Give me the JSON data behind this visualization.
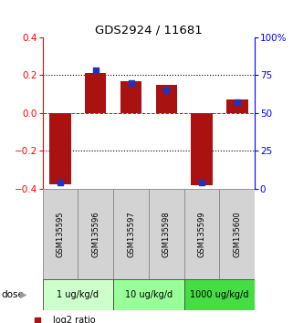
{
  "title": "GDS2924 / 11681",
  "samples": [
    "GSM135595",
    "GSM135596",
    "GSM135597",
    "GSM135598",
    "GSM135599",
    "GSM135600"
  ],
  "log2_ratio": [
    -0.375,
    0.21,
    0.17,
    0.15,
    -0.38,
    0.07
  ],
  "percentile_rank": [
    4.0,
    78.0,
    70.0,
    65.0,
    4.5,
    57.0
  ],
  "ylim_left": [
    -0.4,
    0.4
  ],
  "ylim_right": [
    0,
    100
  ],
  "bar_color": "#aa1111",
  "dot_color": "#2233bb",
  "dose_groups": [
    {
      "label": "1 ug/kg/d",
      "samples": [
        0,
        1
      ],
      "color": "#ccffcc"
    },
    {
      "label": "10 ug/kg/d",
      "samples": [
        2,
        3
      ],
      "color": "#99ff99"
    },
    {
      "label": "1000 ug/kg/d",
      "samples": [
        4,
        5
      ],
      "color": "#44dd44"
    }
  ],
  "dose_label": "dose",
  "yticks_left": [
    -0.4,
    -0.2,
    0.0,
    0.2,
    0.4
  ],
  "yticks_right": [
    0,
    25,
    50,
    75,
    100
  ],
  "ytick_labels_right": [
    "0",
    "25",
    "50",
    "75",
    "100%"
  ],
  "bar_width": 0.6,
  "dot_size": 22
}
